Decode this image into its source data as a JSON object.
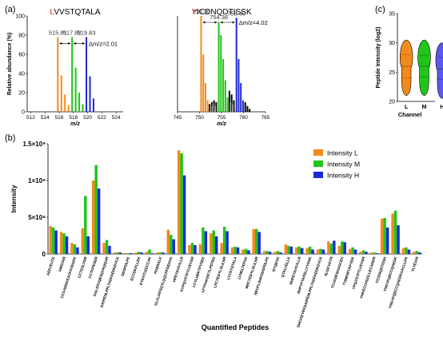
{
  "panels": {
    "a": "(a)",
    "b": "(b)",
    "c": "(c)"
  },
  "colors": {
    "L": "#f28a1c",
    "M": "#22c41a",
    "H": "#1d2ad8",
    "black": "#000000",
    "grey": "#9a9a9a"
  },
  "chart_data": [
    {
      "type": "bar",
      "panel": "a-left",
      "title_parts": [
        {
          "text": "L",
          "color": "#e8231b"
        },
        {
          "text": "VVSTQTALA",
          "color": "#000000"
        }
      ],
      "xlabel": "m/z",
      "ylabel": "Relative abundance (%)",
      "xlim": [
        511.5,
        525
      ],
      "ylim": [
        0,
        100
      ],
      "xticks": [
        512,
        514,
        516,
        518,
        520,
        522,
        524
      ],
      "yticks": [
        0,
        20,
        40,
        60,
        80,
        100
      ],
      "peak_labels": [
        "515.81",
        "517.82",
        "519.83"
      ],
      "delta_label": "Δm/z=2.01",
      "series": [
        {
          "name": "L",
          "color": "#f28a1c",
          "x": [
            515.81,
            516.31,
            516.81,
            517.31
          ],
          "y": [
            78,
            38,
            18,
            7
          ]
        },
        {
          "name": "M",
          "color": "#22c41a",
          "x": [
            517.82,
            518.32,
            518.82,
            519.32
          ],
          "y": [
            78,
            46,
            20,
            8
          ]
        },
        {
          "name": "H",
          "color": "#1d2ad8",
          "x": [
            519.83,
            520.33,
            520.83
          ],
          "y": [
            78,
            37,
            14
          ]
        }
      ]
    },
    {
      "type": "bar",
      "panel": "a-right",
      "title_parts": [
        {
          "text": "Y",
          "color": "#e8231b"
        },
        {
          "text": "ICDNQDTISSK",
          "color": "#000000"
        }
      ],
      "xlabel": "m/z",
      "ylabel": "",
      "xlim": [
        745,
        765
      ],
      "ylim": [
        0,
        100
      ],
      "xticks": [
        745,
        750,
        755,
        760,
        765
      ],
      "yticks": [],
      "peak_labels": [
        "750.36",
        "754.38",
        "758.40"
      ],
      "delta_label": "Δm/z=4.02",
      "series": [
        {
          "name": "L",
          "color": "#f28a1c",
          "x": [
            750.36,
            750.86,
            751.36,
            751.86
          ],
          "y": [
            100,
            60,
            30,
            12
          ]
        },
        {
          "name": "M",
          "color": "#22c41a",
          "x": [
            754.38,
            754.88,
            755.38,
            755.88,
            756.38
          ],
          "y": [
            94,
            80,
            55,
            33,
            15
          ]
        },
        {
          "name": "H",
          "color": "#1d2ad8",
          "x": [
            758.4,
            758.9,
            759.4,
            759.9
          ],
          "y": [
            98,
            55,
            30,
            12
          ]
        },
        {
          "name": "other",
          "color": "#000000",
          "x": [
            752.3,
            752.8,
            753.3,
            753.8,
            756.8,
            757.3,
            757.8,
            760.4,
            760.9,
            761.4
          ],
          "y": [
            8,
            10,
            12,
            10,
            22,
            18,
            12,
            10,
            6,
            3
          ]
        },
        {
          "name": "other-grey",
          "color": "#9a9a9a",
          "x": [
            752.55,
            753.05,
            753.55,
            757.05,
            757.55
          ],
          "y": [
            6,
            8,
            6,
            10,
            8
          ]
        }
      ]
    },
    {
      "type": "violin",
      "panel": "c",
      "xlabel": "Channel",
      "ylabel": "Peptide Intensity (log2)",
      "categories": [
        "L",
        "M",
        "H"
      ],
      "ylim": [
        20,
        35
      ],
      "yticks": [
        20,
        25,
        30,
        35
      ],
      "series": [
        {
          "name": "L",
          "color": "#f28a1c",
          "min": 21,
          "max": 30.5,
          "median": 26,
          "q1": 24,
          "q3": 28
        },
        {
          "name": "M",
          "color": "#22c41a",
          "min": 21,
          "max": 30.5,
          "median": 26,
          "q1": 24.2,
          "q3": 27.8
        },
        {
          "name": "H",
          "color": "#5b58f0",
          "min": 20.5,
          "max": 30,
          "median": 25.5,
          "q1": 23.8,
          "q3": 27.5
        }
      ]
    },
    {
      "type": "bar",
      "panel": "b",
      "xlabel": "Quantified Peptides",
      "ylabel": "Intensity",
      "ylim": [
        0,
        1.5
      ],
      "yticks": [
        0,
        0.5,
        1,
        1.5
      ],
      "ytick_labels": [
        "0",
        "5×10⁸",
        "1×10⁹",
        "1.5×10⁹"
      ],
      "legend_position": "top-right",
      "categories": [
        "AEFVEVTK",
        "AMSVAR",
        "CCAADDKEACFAVEGPK",
        "CCTESLVNR",
        "CCTKPESER",
        "DALSSVQESQVAQQAR",
        "DAIPENLPPLTADFAEDKDVCK",
        "DDSPDLPK",
        "ECCDKPLLEK",
        "EYEATLEECCAK",
        "FGERALK",
        "GLVLIAFSQYLQQCPFDEHVK",
        "HPEYAVSVLLR",
        "KVPQVSTPTLVEVSR",
        "LCVLHEKTPVSEK",
        "LFTFHADICTLPDTEK",
        "LPCTEDYLSLILNR",
        "LVVSTQTALA",
        "LVNELTEFAK",
        "MPCTEDYLSLILNR",
        "NECFLSHKDDSPDLPK",
        "NYQEAK",
        "QTALVELLK",
        "RHPEYAVSVLLR",
        "RHPYFYAPELLYYANK",
        "SHCIAEVEKDAIPENLPPLTADFAEDKDVCK",
        "SLGKVGTR",
        "TCVADESHAGCEK",
        "TVMENFVAFVDK",
        "VPQVSTPTLVEVSR",
        "VHKECCHGDLLECADDR",
        "YICDNQDTISSK",
        "YNGVFQECCQAEDK",
        "YNGVFQECCQAEDKGACLLPK",
        "YLYEIAR"
      ],
      "series": [
        {
          "name": "Intensity L",
          "color": "#f28a1c",
          "values": [
            0.38,
            0.3,
            0.15,
            0.35,
            1.0,
            0.15,
            0.02,
            0.01,
            0.02,
            0.03,
            0.02,
            0.33,
            1.41,
            0.12,
            0.13,
            0.28,
            0.15,
            0.09,
            0.06,
            0.34,
            0.04,
            0.03,
            0.13,
            0.09,
            0.08,
            0.06,
            0.17,
            0.11,
            0.07,
            0.03,
            0.02,
            0.48,
            0.55,
            0.08,
            0.03
          ]
        },
        {
          "name": "Intensity M",
          "color": "#22c41a",
          "values": [
            0.36,
            0.28,
            0.13,
            0.79,
            1.21,
            0.19,
            0.02,
            0.01,
            0.03,
            0.06,
            0.02,
            0.26,
            1.37,
            0.15,
            0.36,
            0.32,
            0.37,
            0.1,
            0.07,
            0.34,
            0.04,
            0.04,
            0.11,
            0.1,
            0.1,
            0.07,
            0.14,
            0.17,
            0.09,
            0.05,
            0.02,
            0.49,
            0.59,
            0.09,
            0.04
          ]
        },
        {
          "name": "Intensity H",
          "color": "#1d2ad8",
          "values": [
            0.32,
            0.24,
            0.09,
            0.24,
            0.89,
            0.11,
            0.02,
            0.01,
            0.02,
            0.01,
            0.02,
            0.2,
            1.07,
            0.12,
            0.31,
            0.24,
            0.31,
            0.09,
            0.05,
            0.3,
            0.03,
            0.02,
            0.1,
            0.08,
            0.06,
            0.06,
            0.18,
            0.16,
            0.06,
            0.03,
            0.01,
            0.36,
            0.39,
            0.06,
            0.02
          ]
        }
      ]
    }
  ]
}
